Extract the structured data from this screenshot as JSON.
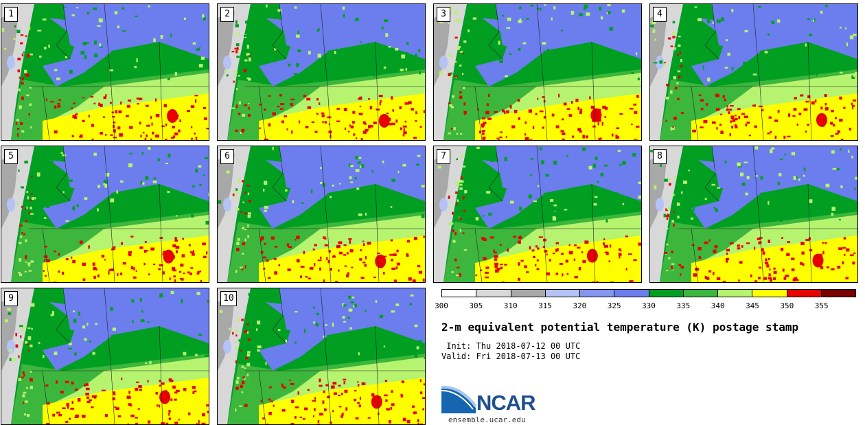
{
  "panels": [
    {
      "label": "1"
    },
    {
      "label": "2"
    },
    {
      "label": "3"
    },
    {
      "label": "4"
    },
    {
      "label": "5"
    },
    {
      "label": "6"
    },
    {
      "label": "7"
    },
    {
      "label": "8"
    },
    {
      "label": "9"
    },
    {
      "label": "10"
    }
  ],
  "colorbar": {
    "colors": [
      "#ffffff",
      "#d8d8d8",
      "#a8a8a8",
      "#b4c2f6",
      "#8596ef",
      "#6c7ded",
      "#009f22",
      "#3cb63c",
      "#b6f36e",
      "#ffff00",
      "#e60000",
      "#7a0000"
    ],
    "ticks": [
      "300",
      "305",
      "310",
      "315",
      "320",
      "325",
      "330",
      "335",
      "340",
      "345",
      "350",
      "355"
    ]
  },
  "title": "2-m equivalent potential temperature (K) postage stamp",
  "init_line": " Init: Thu 2018-07-12 00 UTC",
  "valid_line": "Valid: Fri 2018-07-13 00 UTC",
  "logo": {
    "name": "NCAR",
    "url": "ensemble.ucar.edu"
  }
}
